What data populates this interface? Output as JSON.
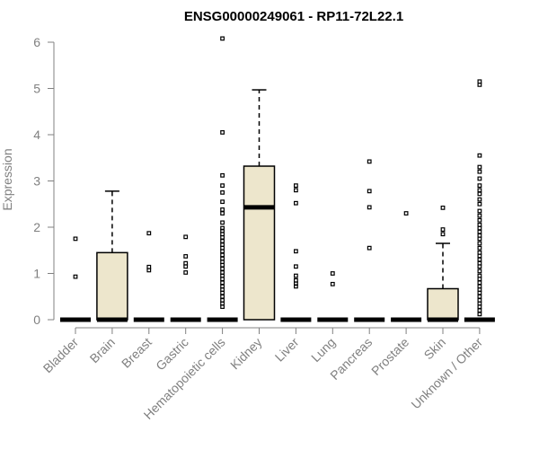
{
  "chart_data": {
    "type": "box",
    "title": "ENSG00000249061 - RP11-72L22.1",
    "ylabel": "Expression",
    "xlabel": "",
    "ylim": [
      0,
      6
    ],
    "yticks": [
      0,
      1,
      2,
      3,
      4,
      5,
      6
    ],
    "grid": false,
    "legend": "none",
    "colors": {
      "box_fill": "#ede6cc",
      "axis": "#808080",
      "line": "#000000"
    },
    "categories": [
      "Bladder",
      "Brain",
      "Breast",
      "Gastric",
      "Hematopoietic cells",
      "Kidney",
      "Liver",
      "Lung",
      "Pancreas",
      "Prostate",
      "Skin",
      "Unknown / Other"
    ],
    "boxes": [
      {
        "category": "Bladder",
        "q1": 0,
        "median": 0,
        "q3": 0,
        "whisker_low": 0,
        "whisker_high": 0,
        "outliers": [
          0.93,
          1.75
        ]
      },
      {
        "category": "Brain",
        "q1": 0,
        "median": 0,
        "q3": 1.45,
        "whisker_low": 0,
        "whisker_high": 2.78,
        "outliers": []
      },
      {
        "category": "Breast",
        "q1": 0,
        "median": 0,
        "q3": 0,
        "whisker_low": 0,
        "whisker_high": 0,
        "outliers": [
          1.07,
          1.14,
          1.87
        ]
      },
      {
        "category": "Gastric",
        "q1": 0,
        "median": 0,
        "q3": 0,
        "whisker_low": 0,
        "whisker_high": 0,
        "outliers": [
          1.02,
          1.15,
          1.22,
          1.37,
          1.79
        ]
      },
      {
        "category": "Hematopoietic cells",
        "q1": 0,
        "median": 0,
        "q3": 0,
        "whisker_low": 0,
        "whisker_high": 0,
        "outliers": [
          0.28,
          0.35,
          0.42,
          0.5,
          0.58,
          0.65,
          0.72,
          0.8,
          0.88,
          0.95,
          1.02,
          1.1,
          1.18,
          1.25,
          1.32,
          1.4,
          1.48,
          1.55,
          1.62,
          1.7,
          1.78,
          1.85,
          1.92,
          1.98,
          2.1,
          2.3,
          2.38,
          2.55,
          2.75,
          2.9,
          3.12,
          4.05,
          6.08
        ]
      },
      {
        "category": "Kidney",
        "q1": 0,
        "median": 2.43,
        "q3": 3.32,
        "whisker_low": 0,
        "whisker_high": 4.97,
        "outliers": []
      },
      {
        "category": "Liver",
        "q1": 0,
        "median": 0,
        "q3": 0,
        "whisker_low": 0,
        "whisker_high": 0,
        "outliers": [
          0.72,
          0.78,
          0.85,
          0.95,
          1.15,
          1.48,
          2.52,
          2.8,
          2.9
        ]
      },
      {
        "category": "Lung",
        "q1": 0,
        "median": 0,
        "q3": 0,
        "whisker_low": 0,
        "whisker_high": 0,
        "outliers": [
          0.77,
          1.0
        ]
      },
      {
        "category": "Pancreas",
        "q1": 0,
        "median": 0,
        "q3": 0,
        "whisker_low": 0,
        "whisker_high": 0,
        "outliers": [
          1.55,
          2.43,
          2.78,
          3.42
        ]
      },
      {
        "category": "Prostate",
        "q1": 0,
        "median": 0,
        "q3": 0,
        "whisker_low": 0,
        "whisker_high": 0,
        "outliers": [
          2.3
        ]
      },
      {
        "category": "Skin",
        "q1": 0,
        "median": 0,
        "q3": 0.67,
        "whisker_low": 0,
        "whisker_high": 1.65,
        "outliers": [
          1.85,
          1.95,
          2.42
        ]
      },
      {
        "category": "Unknown / Other",
        "q1": 0,
        "median": 0,
        "q3": 0,
        "whisker_low": 0,
        "whisker_high": 0,
        "outliers": [
          0.12,
          0.2,
          0.28,
          0.35,
          0.42,
          0.5,
          0.58,
          0.65,
          0.72,
          0.8,
          0.88,
          0.95,
          1.05,
          1.15,
          1.22,
          1.3,
          1.38,
          1.45,
          1.55,
          1.65,
          1.75,
          1.82,
          1.9,
          1.98,
          2.05,
          2.15,
          2.25,
          2.35,
          2.5,
          2.6,
          2.72,
          2.8,
          2.9,
          3.05,
          3.2,
          3.3,
          3.55,
          5.08,
          5.15
        ]
      }
    ]
  }
}
